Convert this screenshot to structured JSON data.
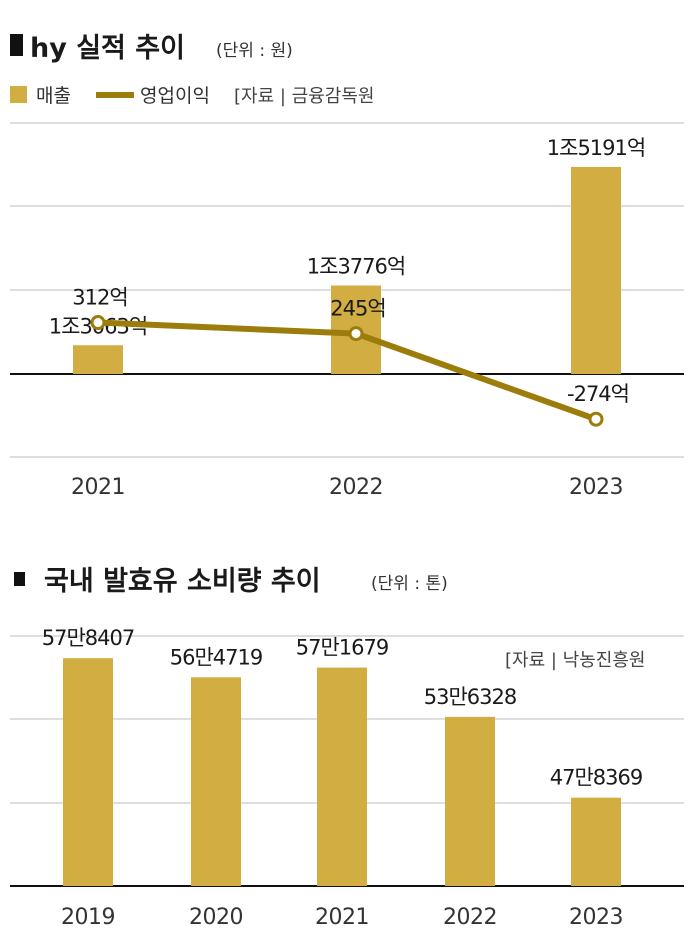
{
  "colors": {
    "bar": "#d2ad42",
    "line": "#9c7d0c",
    "axis": "#111111",
    "grid": "#bdbdbd"
  },
  "chart_data": [
    {
      "type": "bar+line",
      "title": "hy 실적 추이",
      "unit": "(단위 : 원)",
      "source": "[자료 | 금융감독원",
      "categories": [
        "2021",
        "2022",
        "2023"
      ],
      "series": [
        {
          "name": "매출",
          "kind": "bar",
          "values": [
            13063,
            13776,
            15191
          ],
          "value_labels": [
            "1조3063억",
            "1조3776억",
            "1조5191억"
          ],
          "unit": "억원"
        },
        {
          "name": "영업이익",
          "kind": "line",
          "values": [
            312,
            245,
            -274
          ],
          "value_labels": [
            "312억",
            "245억",
            "-274억"
          ],
          "unit": "억원"
        }
      ]
    },
    {
      "type": "bar",
      "title": "국내 발효유 소비량 추이",
      "unit": "(단위 : 톤)",
      "source": "[자료 | 낙농진흥원",
      "categories": [
        "2019",
        "2020",
        "2021",
        "2022",
        "2023"
      ],
      "values": [
        578407,
        564719,
        571679,
        536328,
        478369
      ],
      "value_labels": [
        "57만8407",
        "56만4719",
        "57만1679",
        "53만6328",
        "47만8369"
      ]
    }
  ]
}
